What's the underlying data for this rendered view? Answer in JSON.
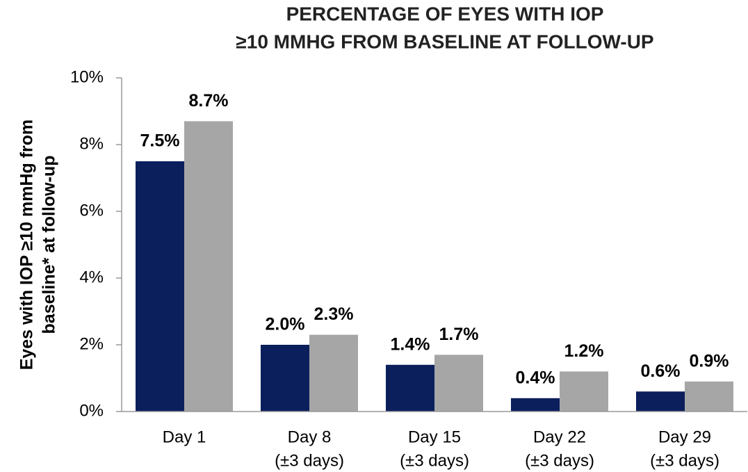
{
  "chart_data": {
    "type": "bar",
    "title": [
      "PERCENTAGE OF EYES WITH IOP",
      "≥10 MMHG FROM BASELINE AT FOLLOW-UP"
    ],
    "y_label": [
      "Eyes with IOP ≥10 mmHg from",
      "baseline* at follow-up"
    ],
    "categories": [
      [
        "Day 1"
      ],
      [
        "Day 8",
        "(±3 days)"
      ],
      [
        "Day 15",
        "(±3 days)"
      ],
      [
        "Day 22",
        "(±3 days)"
      ],
      [
        "Day 29",
        "(±3 days)"
      ]
    ],
    "series": [
      {
        "color": "#0b1f5c",
        "label_color": "#1f3266",
        "values": [
          7.5,
          2.0,
          1.4,
          0.4,
          0.6
        ],
        "value_labels": [
          "7.5%",
          "2.0%",
          "1.4%",
          "0.4%",
          "0.6%"
        ]
      },
      {
        "color": "#a6a6a6",
        "label_color": "#8c8c8c",
        "values": [
          8.7,
          2.3,
          1.7,
          1.2,
          0.9
        ],
        "value_labels": [
          "8.7%",
          "2.3%",
          "1.7%",
          "1.2%",
          "0.9%"
        ]
      }
    ],
    "ylim": [
      0,
      10
    ],
    "yticks": [
      {
        "value": 0,
        "label": "0%"
      },
      {
        "value": 2,
        "label": "2%"
      },
      {
        "value": 4,
        "label": "4%"
      },
      {
        "value": 6,
        "label": "6%"
      },
      {
        "value": 8,
        "label": "8%"
      },
      {
        "value": 10,
        "label": "10%"
      }
    ],
    "grid": false
  }
}
